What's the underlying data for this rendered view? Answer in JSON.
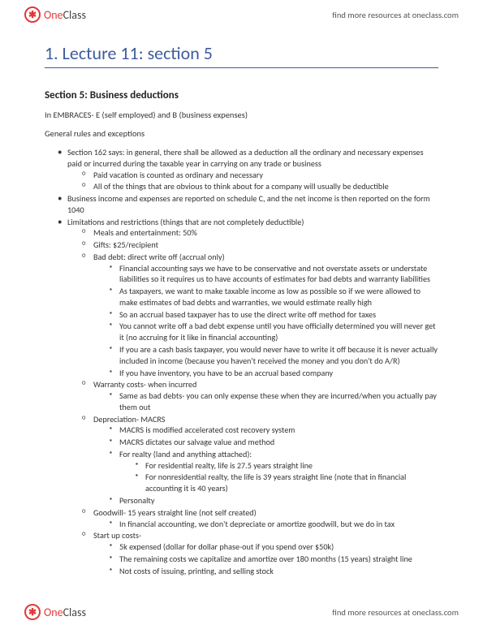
{
  "brand": {
    "logo_glyph": "✱",
    "name_one": "One",
    "name_class": "Class"
  },
  "header": {
    "tagline": "find more resources at oneclass.com"
  },
  "title": "1. Lecture 11: section 5",
  "section_heading": "Section 5: Business deductions",
  "intro": "In EMBRACES- E (self employed) and B (business expenses)",
  "subhead": "General rules and exceptions",
  "bullets": [
    {
      "t": "Section 162 says: in general, there shall be allowed as a deduction all the ordinary and necessary expenses paid or incurred during the taxable year in carrying on any trade or business",
      "c": [
        {
          "t": "Paid vacation is counted as ordinary and necessary"
        },
        {
          "t": "All of the things that are obvious to think about for a company will usually be deductible"
        }
      ]
    },
    {
      "t": "Business income and expenses are reported on schedule C, and the net income is then reported on the form 1040"
    },
    {
      "t": "Limitations and restrictions (things that are not completely deductible)",
      "c": [
        {
          "t": "Meals and entertainment: 50%"
        },
        {
          "t": "Gifts: $25/recipient"
        },
        {
          "t": "Bad debt: direct write off (accrual only)",
          "c": [
            {
              "t": "Financial accounting says we have to be conservative and not overstate assets or understate liabilities so it requires us to have accounts of estimates for bad debts and warranty liabilities"
            },
            {
              "t": "As taxpayers, we want to make taxable income as low as possible so if we were allowed to make estimates of bad debts and warranties, we would estimate really high"
            },
            {
              "t": "So an accrual based taxpayer has to use the direct write off method for taxes"
            },
            {
              "t": "You cannot write off a bad debt expense until you have officially determined you will never get it (no accruing for it like in financial accounting)"
            },
            {
              "t": "If you are a cash basis taxpayer, you would never have to write it off because it is never actually included in income (because you haven't received the money and you don't do A/R)"
            },
            {
              "t": "If you have inventory, you have to be an accrual based company"
            }
          ]
        },
        {
          "t": "Warranty costs- when incurred",
          "c": [
            {
              "t": "Same as bad debts- you can only expense these when they are incurred/when you actually pay them out"
            }
          ]
        },
        {
          "t": "Depreciation- MACRS",
          "c": [
            {
              "t": "MACRS is modified accelerated cost recovery system"
            },
            {
              "t": "MACRS dictates our salvage value and method"
            },
            {
              "t": "For realty (land and anything attached):",
              "c": [
                {
                  "t": "For residential realty, life is 27.5 years straight line"
                },
                {
                  "t": "For nonresidential realty, the life is 39 years straight line (note that in financial accounting it is 40 years)"
                }
              ]
            },
            {
              "t": "Personalty"
            }
          ]
        },
        {
          "t": "Goodwill- 15 years straight line (not self created)",
          "c": [
            {
              "t": "In financial accounting, we don't depreciate or amortize goodwill, but we do in tax"
            }
          ]
        },
        {
          "t": "Start up costs-",
          "c": [
            {
              "t": "5k expensed (dollar for dollar phase-out if you spend over $50k)"
            },
            {
              "t": "The remaining costs we capitalize and amortize over 180 months (15 years) straight line"
            },
            {
              "t": "Not costs of issuing, printing, and selling stock"
            }
          ]
        }
      ]
    }
  ],
  "footer": {
    "tagline": "find more resources at oneclass.com"
  },
  "colors": {
    "accent": "#3d5b9e",
    "brand_red": "#e03a3a",
    "text": "#333333",
    "bg": "#ffffff"
  }
}
